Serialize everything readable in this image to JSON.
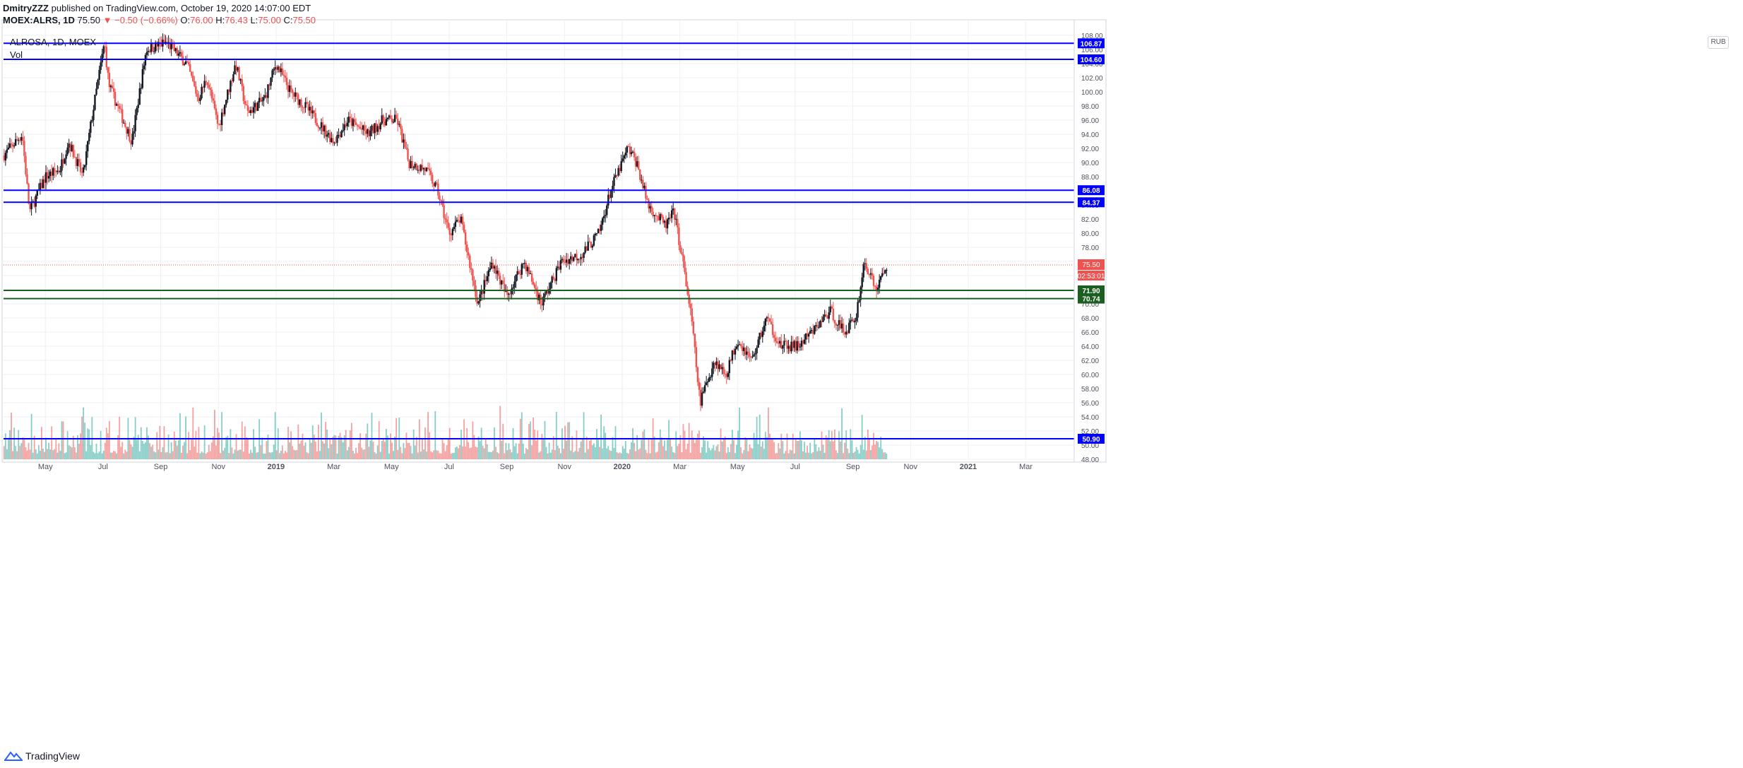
{
  "header": {
    "author": "DmitryZZZ",
    "published_text": "published on TradingView.com, October 19, 2020 14:07:00 EDT",
    "symbol": "MOEX:ALRS, 1D",
    "last": "75.50",
    "change": "▼ −0.50 (−0.66%)",
    "o_label": "O:",
    "o_value": "76.00",
    "h_label": "H:",
    "h_value": "76.43",
    "l_label": "L:",
    "l_value": "75.00",
    "c_label": "C:",
    "c_value": "75.50"
  },
  "legend": {
    "title": "ALROSA, 1D, MOEX",
    "volume": "Vol"
  },
  "currency_button": "RUB",
  "footer": {
    "brand": "TradingView"
  },
  "colors": {
    "up": "#26a69a",
    "down": "#ef5350",
    "candle_up_body": "#131722",
    "blue_level": "#0000ff",
    "green_level": "#1b5e20",
    "last_price": "#ef5350"
  },
  "chart_data": {
    "type": "candlestick",
    "symbol": "ALROSA, 1D, MOEX",
    "ylim": [
      48,
      110
    ],
    "y_ticks": [
      "48.00",
      "50.00",
      "52.00",
      "54.00",
      "56.00",
      "58.00",
      "60.00",
      "62.00",
      "64.00",
      "66.00",
      "68.00",
      "70.00",
      "72.00",
      "74.00",
      "76.00",
      "78.00",
      "80.00",
      "82.00",
      "84.00",
      "86.00",
      "88.00",
      "90.00",
      "92.00",
      "94.00",
      "96.00",
      "98.00",
      "100.00",
      "102.00",
      "104.00",
      "106.00",
      "108.00"
    ],
    "x_ticks": [
      {
        "label": "May",
        "month": 4
      },
      {
        "label": "Jul",
        "month": 6
      },
      {
        "label": "Sep",
        "month": 8
      },
      {
        "label": "Nov",
        "month": 10
      },
      {
        "label": "2019",
        "month": 12,
        "bold": true
      },
      {
        "label": "Mar",
        "month": 14
      },
      {
        "label": "May",
        "month": 16
      },
      {
        "label": "Jul",
        "month": 18
      },
      {
        "label": "Sep",
        "month": 20
      },
      {
        "label": "Nov",
        "month": 22
      },
      {
        "label": "2020",
        "month": 24,
        "bold": true
      },
      {
        "label": "Mar",
        "month": 26
      },
      {
        "label": "May",
        "month": 28
      },
      {
        "label": "Jul",
        "month": 30
      },
      {
        "label": "Sep",
        "month": 32
      },
      {
        "label": "Nov",
        "month": 34
      },
      {
        "label": "2021",
        "month": 36,
        "bold": true
      },
      {
        "label": "Mar",
        "month": 38
      }
    ],
    "x_range_months": [
      2.55,
      39.65
    ],
    "price_path_months": [
      2.55,
      3.2,
      3.45,
      4.0,
      4.5,
      4.8,
      5.3,
      5.6,
      6.05,
      6.2,
      6.6,
      7.0,
      7.5,
      8.2,
      8.9,
      9.3,
      9.6,
      10.0,
      10.6,
      11.0,
      11.6,
      12.0,
      12.5,
      13.0,
      14.0,
      14.5,
      15.2,
      15.7,
      16.2,
      16.6,
      17.2,
      17.6,
      18.0,
      18.4,
      19.0,
      19.5,
      20.0,
      20.6,
      21.2,
      21.9,
      22.6,
      23.2,
      23.6,
      24.2,
      24.5,
      24.9,
      25.5,
      25.8,
      26.1,
      26.4,
      26.7,
      27.2,
      27.6,
      28.0,
      28.5,
      29.0,
      29.5,
      30.1,
      30.6,
      31.2,
      31.7,
      32.1,
      32.4,
      32.8,
      33.2
    ],
    "price_path_close": [
      91,
      94,
      83,
      88,
      89,
      93,
      88,
      96,
      107,
      101,
      97,
      93,
      106,
      107,
      104,
      99,
      102,
      95,
      104,
      97,
      99,
      104,
      100,
      98,
      93,
      96,
      94,
      96,
      96,
      90,
      89,
      86,
      80,
      82,
      70,
      76,
      71,
      76,
      70,
      76,
      77,
      80,
      86,
      92,
      90,
      84,
      81,
      83,
      76,
      68,
      56,
      62,
      60,
      65,
      62,
      68,
      64,
      64,
      66,
      69,
      66,
      68,
      76,
      72,
      75.5
    ],
    "last_close": 75.5,
    "last_label": "75.50",
    "countdown": "02:53:01",
    "levels": [
      {
        "value": 106.87,
        "label": "106.87",
        "color": "#0000ff"
      },
      {
        "value": 104.6,
        "label": "104.60",
        "color": "#0000ff"
      },
      {
        "value": 86.08,
        "label": "86.08",
        "color": "#0000ff"
      },
      {
        "value": 84.37,
        "label": "84.37",
        "color": "#0000ff"
      },
      {
        "value": 71.9,
        "label": "71.90",
        "color": "#1b5e20"
      },
      {
        "value": 70.74,
        "label": "70.74",
        "color": "#1b5e20"
      },
      {
        "value": 50.9,
        "label": "50.90",
        "color": "#0000ff"
      }
    ]
  }
}
